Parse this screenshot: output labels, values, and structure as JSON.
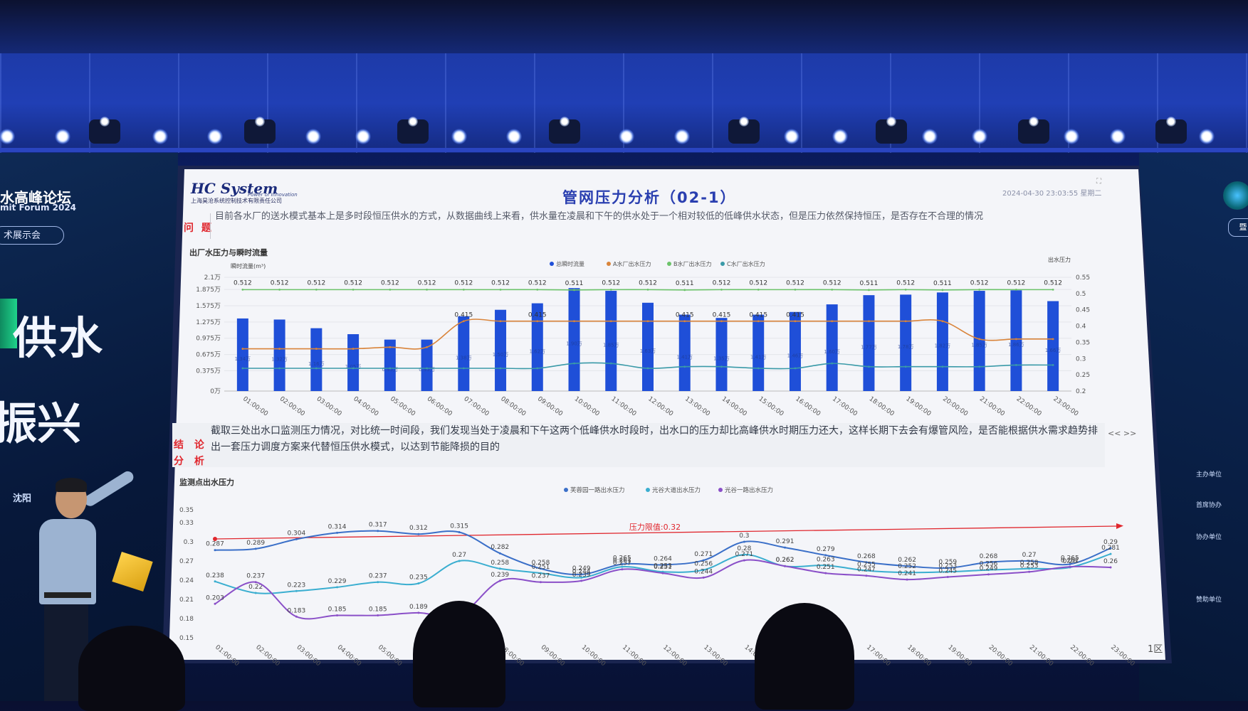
{
  "venue": {
    "left_banner": {
      "forum_title": "水高峰论坛",
      "forum_subtitle": "mit Forum 2024",
      "exhibition_pill": "术展示会",
      "big_text_1": "供水",
      "big_text_2": "振兴",
      "sponsor_logo": "沈阳"
    },
    "right_banner": {
      "button": "暨",
      "items": [
        "主办单位",
        "首席协办",
        "协办单位",
        "赞助单位"
      ]
    }
  },
  "slide": {
    "brand_name": "HC System",
    "brand_tagline": "Power of Innovation",
    "brand_company": "上海昊沧系统控制技术有限责任公司",
    "title": "管网压力分析（02-1）",
    "datetime": "2024-04-30  23:03:55  星期二",
    "problem_label": "问 题",
    "problem_text": "目前各水厂的送水模式基本上是多时段恒压供水的方式，从数据曲线上来看，供水量在凌晨和下午的供水处于一个相对较低的低峰供水状态，但是压力依然保持恒压，是否存在不合理的情况",
    "conclusion_label_1": "结 论",
    "conclusion_label_2": "分 析",
    "conclusion_text": "截取三处出水口监测压力情况，对比统一时间段，我们发现当处于凌晨和下午这两个低峰供水时段时，出水口的压力却比高峰供水时期压力还大，这样长期下去会有爆管风险，是否能根据供水需求趋势排出一套压力调度方案来代替恒压供水模式，以达到节能降损的目的",
    "nav": "<< >>",
    "page_badge": "1区"
  },
  "chart_data": [
    {
      "type": "bar",
      "title": "出厂水压力与瞬时流量",
      "ylabel_left": "瞬时流量(m³)",
      "ylabel_right": "出水压力",
      "yticks_left": [
        "0万",
        "0.375万",
        "0.675万",
        "0.975万",
        "1.275万",
        "1.575万",
        "1.875万",
        "2.1万"
      ],
      "ylim_left": [
        0,
        2.1
      ],
      "yticks_right": [
        "0.2",
        "0.25",
        "0.3",
        "0.35",
        "0.4",
        "0.45",
        "0.5",
        "0.55"
      ],
      "ylim_right": [
        0.2,
        0.55
      ],
      "categories": [
        "01:00:00",
        "02:00:00",
        "03:00:00",
        "04:00:00",
        "05:00:00",
        "06:00:00",
        "07:00:00",
        "08:00:00",
        "09:00:00",
        "10:00:00",
        "11:00:00",
        "12:00:00",
        "13:00:00",
        "14:00:00",
        "15:00:00",
        "16:00:00",
        "17:00:00",
        "18:00:00",
        "19:00:00",
        "20:00:00",
        "21:00:00",
        "22:00:00",
        "23:00:00"
      ],
      "legend": [
        "总瞬时流量",
        "A水厂出水压力",
        "B水厂出水压力",
        "C水厂出水压力"
      ],
      "colors": {
        "flow": "#1f4fd8",
        "A": "#d9843a",
        "B": "#6cc36a",
        "C": "#3a9aa8"
      },
      "series": [
        {
          "name": "总瞬时流量",
          "axis": "left",
          "values": [
            1.34,
            1.32,
            1.16,
            1.05,
            0.95,
            0.95,
            1.38,
            1.5,
            1.62,
            1.9,
            1.85,
            1.63,
            1.41,
            1.35,
            1.41,
            1.46,
            1.6,
            1.77,
            1.78,
            1.82,
            1.85,
            1.86,
            1.66
          ]
        },
        {
          "name": "B水厂出水压力",
          "axis": "right",
          "values": [
            0.512,
            0.512,
            0.512,
            0.512,
            0.512,
            0.512,
            0.512,
            0.512,
            0.512,
            0.511,
            0.512,
            0.512,
            0.511,
            0.512,
            0.512,
            0.512,
            0.512,
            0.511,
            0.512,
            0.511,
            0.512,
            0.512,
            0.512
          ]
        },
        {
          "name": "A水厂出水压力",
          "axis": "right",
          "values": [
            0.33,
            0.33,
            0.33,
            0.33,
            0.335,
            0.335,
            0.415,
            0.415,
            0.415,
            0.415,
            0.415,
            0.415,
            0.415,
            0.415,
            0.415,
            0.415,
            0.415,
            0.415,
            0.415,
            0.415,
            0.36,
            0.36,
            0.36
          ]
        },
        {
          "name": "C水厂出水压力",
          "axis": "right",
          "values": [
            0.27,
            0.27,
            0.27,
            0.27,
            0.27,
            0.27,
            0.27,
            0.27,
            0.27,
            0.285,
            0.285,
            0.27,
            0.275,
            0.275,
            0.27,
            0.27,
            0.285,
            0.275,
            0.275,
            0.275,
            0.275,
            0.28,
            0.28
          ]
        }
      ],
      "labels_B": [
        "0.512",
        "0.512",
        "0.512",
        "0.512",
        "0.512",
        "0.512",
        "0.512",
        "0.512",
        "0.512",
        "0.511",
        "0.512",
        "0.512",
        "0.511",
        "0.512",
        "0.512",
        "0.512",
        "0.512",
        "0.511",
        "0.512",
        "0.511",
        "0.512",
        "0.512",
        "0.512"
      ],
      "labels_A_visible": [
        "0.415",
        "0.415",
        "0.415",
        "0.415",
        "0.415",
        "0.415"
      ]
    },
    {
      "type": "line",
      "title": "监测点出水压力",
      "yticks": [
        "0.15",
        "0.18",
        "0.21",
        "0.24",
        "0.27",
        "0.3",
        "0.33",
        "0.35"
      ],
      "ylim": [
        0.15,
        0.35
      ],
      "categories": [
        "01:00:00",
        "02:00:00",
        "03:00:00",
        "04:00:00",
        "05:00:00",
        "06:00:00",
        "07:00:00",
        "08:00:00",
        "09:00:00",
        "10:00:00",
        "11:00:00",
        "12:00:00",
        "13:00:00",
        "14:00:00",
        "15:00:00",
        "16:00:00",
        "17:00:00",
        "18:00:00",
        "19:00:00",
        "20:00:00",
        "21:00:00",
        "22:00:00",
        "23:00:00"
      ],
      "legend": [
        "芙蓉园一路出水压力",
        "光谷大道出水压力",
        "光谷一路出水压力"
      ],
      "colors": {
        "s1": "#3a6fc8",
        "s2": "#3aaed0",
        "s3": "#8a4fc8",
        "limit": "#e0262d"
      },
      "threshold": {
        "label": "压力限值:0.32",
        "value": 0.32
      },
      "series": [
        {
          "name": "芙蓉园一路出水压力",
          "values": [
            0.287,
            0.289,
            0.304,
            0.314,
            0.317,
            0.312,
            0.315,
            0.282,
            0.258,
            0.249,
            0.265,
            0.264,
            0.271,
            0.3,
            0.291,
            0.279,
            0.268,
            0.262,
            0.259,
            0.268,
            0.27,
            0.265,
            0.29
          ]
        },
        {
          "name": "光谷大道出水压力",
          "values": [
            0.238,
            0.22,
            0.223,
            0.229,
            0.237,
            0.235,
            0.27,
            0.258,
            0.251,
            0.244,
            0.261,
            0.253,
            0.256,
            0.28,
            0.262,
            0.263,
            0.255,
            0.252,
            0.253,
            0.256,
            0.258,
            0.26,
            0.281
          ]
        },
        {
          "name": "光谷一路出水压力",
          "values": [
            0.203,
            0.237,
            0.183,
            0.185,
            0.185,
            0.189,
            0.185,
            0.239,
            0.237,
            0.239,
            0.257,
            0.251,
            0.244,
            0.271,
            0.262,
            0.251,
            0.247,
            0.241,
            0.245,
            0.249,
            0.253,
            0.261,
            0.26
          ]
        }
      ],
      "labels_s1": [
        "0.287",
        "0.289",
        "0.304",
        "0.314",
        "0.317",
        "0.312",
        "0.315",
        "0.282",
        "0.258",
        "0.249",
        "0.265",
        "0.264",
        "0.271",
        "0.3",
        "0.291",
        "0.279",
        "0.268",
        "0.262",
        "0.259",
        "0.268",
        "0.27",
        "0.265",
        "0.29"
      ],
      "labels_s2": [
        "0.238",
        "0.22",
        "0.223",
        "0.229",
        "0.237",
        "0.235",
        "0.27",
        "0.258",
        "0.251",
        "0.244",
        "0.261",
        "0.253",
        "0.256",
        "0.28",
        "0.262",
        "0.263",
        "0.255",
        "0.252",
        "0.253",
        "0.256",
        "0.258",
        "0.26",
        "0.281"
      ],
      "labels_s3": [
        "0.203",
        "0.237",
        "0.183",
        "0.185",
        "0.185",
        "0.189",
        "0.185",
        "0.239",
        "0.237",
        "0.239",
        "0.257",
        "0.251",
        "0.244",
        "0.271",
        "0.262",
        "0.251",
        "0.247",
        "0.241",
        "0.245",
        "0.249",
        "0.253",
        "0.261",
        "0.26"
      ]
    }
  ]
}
